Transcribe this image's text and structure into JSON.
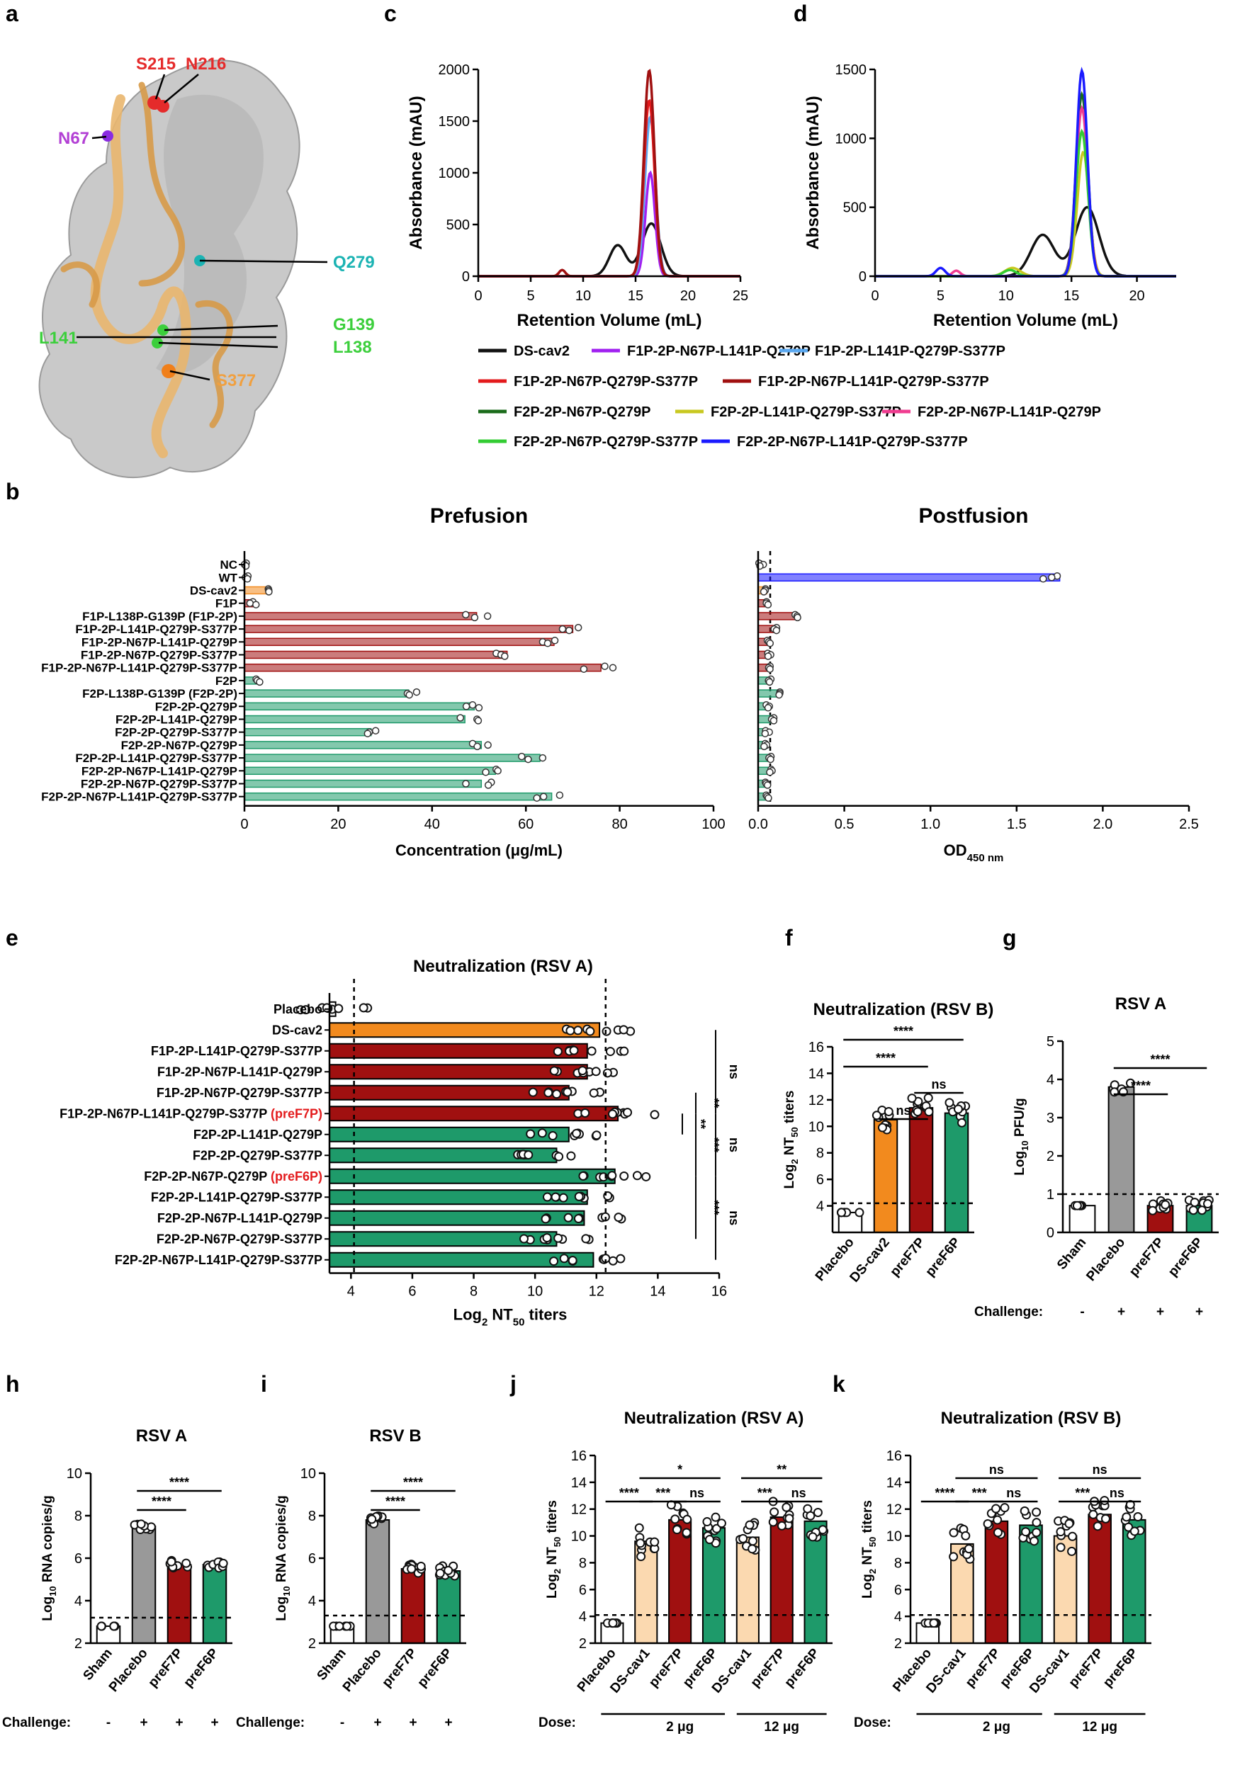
{
  "panel_letters": [
    "a",
    "b",
    "c",
    "d",
    "e",
    "f",
    "g",
    "h",
    "i",
    "j",
    "k"
  ],
  "structure": {
    "labels": [
      {
        "text": "S215",
        "color": "#e52b2b"
      },
      {
        "text": "N216",
        "color": "#e52b2b"
      },
      {
        "text": "N67",
        "color": "#b23fd4"
      },
      {
        "text": "Q279",
        "color": "#1bb3b3"
      },
      {
        "text": "G139",
        "color": "#3ccf3c"
      },
      {
        "text": "L141",
        "color": "#3ccf3c"
      },
      {
        "text": "L138",
        "color": "#3ccf3c"
      },
      {
        "text": "S377",
        "color": "#f0a040"
      }
    ]
  },
  "chart_data": [
    {
      "panel": "c",
      "type": "line",
      "xlabel": "Retention Volume (mL)",
      "ylabel": "Absorbance (mAU)",
      "xlim": [
        0,
        25
      ],
      "ylim": [
        0,
        2000
      ],
      "xticks": [
        0,
        5,
        10,
        15,
        20,
        25
      ],
      "yticks": [
        0,
        500,
        1000,
        1500,
        2000
      ],
      "series": [
        {
          "name": "DS-cav2",
          "color": "#111111",
          "peaks": [
            [
              13.3,
              300,
              0.8
            ],
            [
              16.5,
              510,
              0.9
            ]
          ]
        },
        {
          "name": "F1P-2P-N67P-L141P-Q279P",
          "color": "#a020f0",
          "peaks": [
            [
              16.4,
              1000,
              0.45
            ]
          ]
        },
        {
          "name": "F1P-2P-L141P-Q279P-S377P",
          "color": "#5aa8f0",
          "peaks": [
            [
              16.4,
              1540,
              0.5
            ]
          ]
        },
        {
          "name": "F1P-2P-N67P-Q279P-S377P",
          "color": "#e31a1c",
          "peaks": [
            [
              16.3,
              1700,
              0.5
            ]
          ]
        },
        {
          "name": "F1P-2P-N67P-L141P-Q279P-S377P",
          "color": "#a01010",
          "peaks": [
            [
              8,
              60,
              0.3
            ],
            [
              16.3,
              1990,
              0.5
            ]
          ]
        }
      ]
    },
    {
      "panel": "d",
      "type": "line",
      "xlabel": "Retention Volume (mL)",
      "ylabel": "Absorbance (mAU)",
      "xlim": [
        0,
        23
      ],
      "ylim": [
        0,
        1500
      ],
      "xticks": [
        0,
        5,
        10,
        15,
        20
      ],
      "yticks": [
        0,
        500,
        1000,
        1500
      ],
      "series": [
        {
          "name": "DS-cav2",
          "color": "#111111",
          "peaks": [
            [
              12.8,
              300,
              0.9
            ],
            [
              16.2,
              500,
              0.9
            ]
          ]
        },
        {
          "name": "F2P-2P-N67P-Q279P",
          "color": "#1a6b1a",
          "peaks": [
            [
              15.8,
              1320,
              0.45
            ]
          ]
        },
        {
          "name": "F2P-2P-L141P-Q279P-S377P",
          "color": "#c8c820",
          "peaks": [
            [
              10.5,
              60,
              0.6
            ],
            [
              15.9,
              900,
              0.45
            ]
          ]
        },
        {
          "name": "F2P-2P-N67P-L141P-Q279P",
          "color": "#f03c90",
          "peaks": [
            [
              6.2,
              40,
              0.3
            ],
            [
              15.8,
              1220,
              0.45
            ]
          ]
        },
        {
          "name": "F2P-2P-N67P-Q279P-S377P",
          "color": "#33cc33",
          "peaks": [
            [
              10.3,
              45,
              0.5
            ],
            [
              15.8,
              1050,
              0.45
            ]
          ]
        },
        {
          "name": "F2P-2P-N67P-L141P-Q279P-S377P",
          "color": "#1a1aff",
          "peaks": [
            [
              5,
              60,
              0.35
            ],
            [
              15.8,
              1490,
              0.42
            ]
          ]
        }
      ]
    },
    {
      "panel": "b-prefusion",
      "type": "bar",
      "title": "Prefusion",
      "xlabel": "Concentration (μg/mL)",
      "xlim": [
        0,
        100
      ],
      "xticks": [
        0,
        20,
        40,
        60,
        80,
        100
      ],
      "categories": [
        "NC",
        "WT",
        "DS-cav2",
        "F1P",
        "F1P-L138P-G139P (F1P-2P)",
        "F1P-2P-L141P-Q279P-S377P",
        "F1P-2P-N67P-L141P-Q279P",
        "F1P-2P-N67P-Q279P-S377P",
        "F1P-2P-N67P-L141P-Q279P-S377P",
        "F2P",
        "F2P-L138P-G139P (F2P-2P)",
        "F2P-2P-Q279P",
        "F2P-2P-L141P-Q279P",
        "F2P-2P-Q279P-S377P",
        "F2P-2P-N67P-Q279P",
        "F2P-2P-L141P-Q279P-S377P",
        "F2P-2P-N67P-L141P-Q279P",
        "F2P-2P-N67P-Q279P-S377P",
        "F2P-2P-N67P-L141P-Q279P-S377P"
      ],
      "values": [
        0.3,
        0.3,
        5.5,
        1.8,
        49.5,
        70,
        66,
        56,
        76,
        3,
        35,
        49,
        47,
        27,
        50.5,
        63,
        53.5,
        50.5,
        65.5
      ],
      "colors": [
        "#111",
        "#111",
        "#f28a1e",
        "#a01010",
        "#a01010",
        "#a01010",
        "#a01010",
        "#a01010",
        "#a01010",
        "#1e9a6a",
        "#1e9a6a",
        "#1e9a6a",
        "#1e9a6a",
        "#1e9a6a",
        "#1e9a6a",
        "#1e9a6a",
        "#1e9a6a",
        "#1e9a6a",
        "#1e9a6a"
      ]
    },
    {
      "panel": "b-postfusion",
      "type": "bar",
      "title": "Postfusion",
      "xlabel": "OD450 nm",
      "xlim": [
        0,
        2.5
      ],
      "xticks": [
        "0.0",
        "0.5",
        "1.0",
        "1.5",
        "2.0",
        "2.5"
      ],
      "threshold": 0.07,
      "values": [
        0.02,
        1.75,
        0.05,
        0.06,
        0.22,
        0.1,
        0.07,
        0.06,
        0.06,
        0.06,
        0.11,
        0.06,
        0.08,
        0.05,
        0.05,
        0.07,
        0.07,
        0.05,
        0.06
      ],
      "colors": [
        "#111",
        "#1a1aff",
        "#f28a1e",
        "#a01010",
        "#a01010",
        "#a01010",
        "#a01010",
        "#a01010",
        "#a01010",
        "#1e9a6a",
        "#1e9a6a",
        "#1e9a6a",
        "#1e9a6a",
        "#1e9a6a",
        "#1e9a6a",
        "#1e9a6a",
        "#1e9a6a",
        "#1e9a6a",
        "#1e9a6a"
      ]
    },
    {
      "panel": "e",
      "type": "bar",
      "title": "Neutralization (RSV A)",
      "xlabel": "Log2 NT50 titers",
      "xlim": [
        3.3,
        16
      ],
      "xticks": [
        4,
        6,
        8,
        10,
        12,
        14,
        16
      ],
      "refs": [
        4.1,
        12.3
      ],
      "categories": [
        "Placebo",
        "DS-cav2",
        "F1P-2P-L141P-Q279P-S377P",
        "F1P-2P-N67P-L141P-Q279P",
        "F1P-2P-N67P-Q279P-S377P",
        "F1P-2P-N67P-L141P-Q279P-S377P",
        "F2P-2P-L141P-Q279P",
        "F2P-2P-Q279P-S377P",
        "F2P-2P-N67P-Q279P",
        "F2P-2P-L141P-Q279P-S377P",
        "F2P-2P-N67P-L141P-Q279P",
        "F2P-2P-N67P-Q279P-S377P",
        "F2P-2P-N67P-L141P-Q279P-S377P"
      ],
      "highlights": [
        "",
        "",
        "",
        "",
        "",
        "(preF7P)",
        "",
        "",
        "(preF6P)",
        "",
        "",
        "",
        ""
      ],
      "values": [
        3.5,
        12.1,
        11.7,
        11.7,
        11.1,
        12.7,
        11.1,
        10.7,
        12.6,
        11.7,
        11.6,
        10.7,
        11.9
      ],
      "colors": [
        "#ffffff",
        "#f28a1e",
        "#a01010",
        "#a01010",
        "#a01010",
        "#a01010",
        "#1e9a6a",
        "#1e9a6a",
        "#1e9a6a",
        "#1e9a6a",
        "#1e9a6a",
        "#1e9a6a",
        "#1e9a6a"
      ],
      "sig": [
        "ns",
        "**",
        "**",
        "***",
        "ns",
        "***",
        "ns"
      ]
    },
    {
      "panel": "f",
      "type": "bar",
      "title": "Neutralization (RSV B)",
      "ylabel": "Log2 NT50 titers",
      "categories": [
        "Placebo",
        "DS-cav2",
        "preF7P",
        "preF6P"
      ],
      "values": [
        3.5,
        10.5,
        11.4,
        11.0
      ],
      "ylim": [
        2,
        16
      ],
      "yticks": [
        4,
        6,
        8,
        10,
        12,
        14,
        16
      ],
      "ref": 4.2,
      "colors": [
        "#ffffff",
        "#f28a1e",
        "#a01010",
        "#1e9a6a"
      ],
      "sig": [
        "****",
        "****",
        "ns",
        "ns"
      ]
    },
    {
      "panel": "g",
      "type": "bar",
      "title": "RSV A",
      "ylabel": "Log10 PFU/g",
      "categories": [
        "Sham",
        "Placebo",
        "preF7P",
        "preF6P"
      ],
      "values": [
        0.7,
        3.8,
        0.7,
        0.7
      ],
      "ylim": [
        0,
        5
      ],
      "yticks": [
        0,
        1,
        2,
        3,
        4,
        5
      ],
      "ref": 1,
      "colors": [
        "#ffffff",
        "#999999",
        "#a01010",
        "#1e9a6a"
      ],
      "sig": [
        "****",
        "****"
      ],
      "challenge_label": "Challenge:",
      "challenge": [
        "-",
        "+",
        "+",
        "+"
      ]
    },
    {
      "panel": "h",
      "type": "bar",
      "title": "RSV A",
      "ylabel": "Log10 RNA copies/g",
      "categories": [
        "Sham",
        "Placebo",
        "preF7P",
        "preF6P"
      ],
      "values": [
        2.8,
        7.5,
        5.7,
        5.7
      ],
      "ylim": [
        2,
        10
      ],
      "yticks": [
        2,
        4,
        6,
        8,
        10
      ],
      "ref": 3.2,
      "colors": [
        "#ffffff",
        "#999999",
        "#a01010",
        "#1e9a6a"
      ],
      "sig": [
        "****",
        "****"
      ],
      "challenge_label": "Challenge:",
      "challenge": [
        "-",
        "+",
        "+",
        "+"
      ]
    },
    {
      "panel": "i",
      "type": "bar",
      "title": "RSV B",
      "ylabel": "Log10 RNA copies/g",
      "categories": [
        "Sham",
        "Placebo",
        "preF7P",
        "preF6P"
      ],
      "values": [
        2.8,
        7.8,
        5.5,
        5.4
      ],
      "ylim": [
        2,
        10
      ],
      "yticks": [
        2,
        4,
        6,
        8,
        10
      ],
      "ref": 3.3,
      "colors": [
        "#ffffff",
        "#999999",
        "#a01010",
        "#1e9a6a"
      ],
      "sig": [
        "****",
        "****"
      ],
      "challenge_label": "Challenge:",
      "challenge": [
        "-",
        "+",
        "+",
        "+"
      ]
    },
    {
      "panel": "j",
      "type": "bar",
      "title": "Neutralization (RSV A)",
      "ylabel": "Log2 NT50 titers",
      "categories": [
        "Placebo",
        "DS-cav1",
        "preF7P",
        "preF6P",
        "DS-cav1",
        "preF7P",
        "preF6P"
      ],
      "values": [
        3.5,
        9.6,
        11.2,
        10.6,
        9.9,
        11.4,
        11.1
      ],
      "ylim": [
        2,
        16
      ],
      "yticks": [
        2,
        4,
        6,
        8,
        10,
        12,
        14,
        16
      ],
      "ref": 4.1,
      "colors": [
        "#ffffff",
        "#fbd9b0",
        "#a01010",
        "#1e9a6a",
        "#fbd9b0",
        "#a01010",
        "#1e9a6a"
      ],
      "sig": [
        "****",
        "***",
        "ns",
        "*",
        "***",
        "ns",
        "**"
      ],
      "dose_label": "Dose:",
      "doses": [
        "2 μg",
        "12 μg"
      ]
    },
    {
      "panel": "k",
      "type": "bar",
      "title": "Neutralization (RSV B)",
      "ylabel": "Log2 NT50 titers",
      "categories": [
        "Placebo",
        "DS-cav1",
        "preF7P",
        "preF6P",
        "DS-cav1",
        "preF7P",
        "preF6P"
      ],
      "values": [
        3.5,
        9.4,
        11.1,
        10.8,
        10.0,
        11.6,
        11.2
      ],
      "ylim": [
        2,
        16
      ],
      "yticks": [
        2,
        4,
        6,
        8,
        10,
        12,
        14,
        16
      ],
      "ref": 4.1,
      "colors": [
        "#ffffff",
        "#fbd9b0",
        "#a01010",
        "#1e9a6a",
        "#fbd9b0",
        "#a01010",
        "#1e9a6a"
      ],
      "sig": [
        "****",
        "***",
        "ns",
        "ns",
        "***",
        "ns",
        "ns"
      ],
      "dose_label": "Dose:",
      "doses": [
        "2 μg",
        "12 μg"
      ]
    }
  ]
}
